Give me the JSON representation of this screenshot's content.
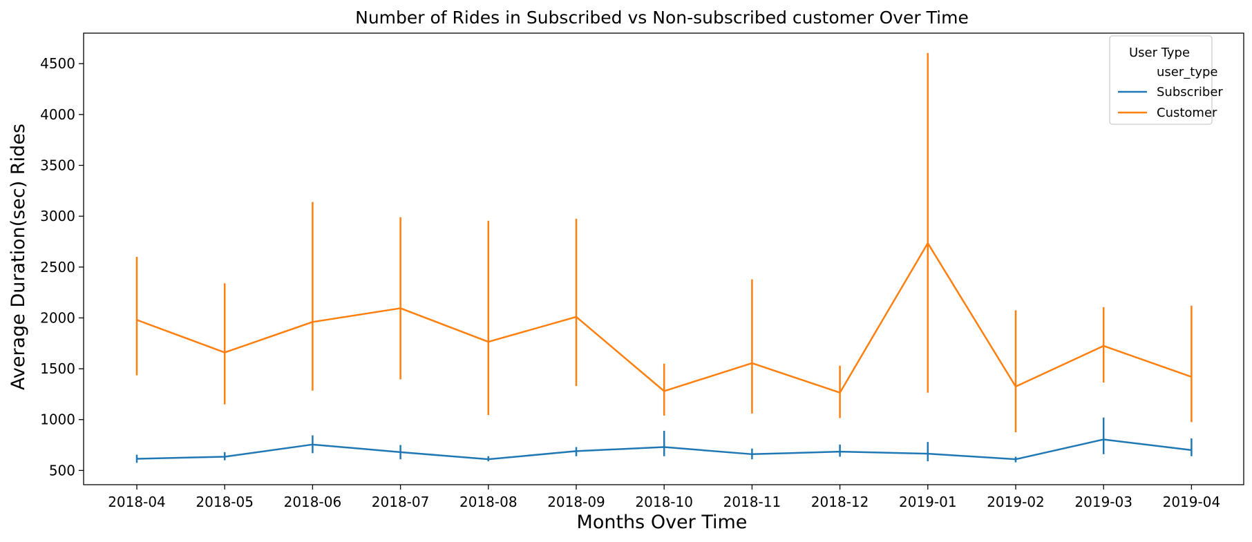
{
  "chart_data": {
    "type": "line",
    "title": "Number of Rides in Subscribed vs Non-subscribed customer Over Time",
    "xlabel": "Months Over Time",
    "ylabel": "Average Duration(sec) Rides",
    "categories": [
      "2018-04",
      "2018-05",
      "2018-06",
      "2018-07",
      "2018-08",
      "2018-09",
      "2018-10",
      "2018-11",
      "2018-12",
      "2019-01",
      "2019-02",
      "2019-03",
      "2019-04"
    ],
    "ylim": [
      360,
      4800
    ],
    "yticks": [
      500,
      1000,
      1500,
      2000,
      2500,
      3000,
      3500,
      4000,
      4500
    ],
    "grid": false,
    "legend": {
      "title": "User Type",
      "subtitle": "user_type",
      "placement": "top-right"
    },
    "series": [
      {
        "name": "Subscriber",
        "color": "#1f77b4",
        "values": [
          615,
          635,
          755,
          680,
          610,
          690,
          730,
          660,
          685,
          665,
          610,
          805,
          700
        ],
        "err_low": [
          575,
          600,
          670,
          610,
          590,
          640,
          640,
          610,
          635,
          590,
          580,
          660,
          640
        ],
        "err_high": [
          655,
          680,
          845,
          750,
          640,
          730,
          890,
          715,
          755,
          780,
          635,
          1020,
          815
        ]
      },
      {
        "name": "Customer",
        "color": "#ff7f0e",
        "values": [
          1980,
          1660,
          1960,
          2095,
          1765,
          2010,
          1280,
          1555,
          1265,
          2735,
          1325,
          1725,
          1420
        ],
        "err_low": [
          1435,
          1150,
          1285,
          1395,
          1045,
          1330,
          1040,
          1060,
          1015,
          1265,
          875,
          1365,
          975
        ],
        "err_high": [
          2600,
          2340,
          3140,
          2990,
          2955,
          2975,
          1550,
          2380,
          1530,
          4605,
          2075,
          2105,
          2120
        ]
      }
    ]
  }
}
